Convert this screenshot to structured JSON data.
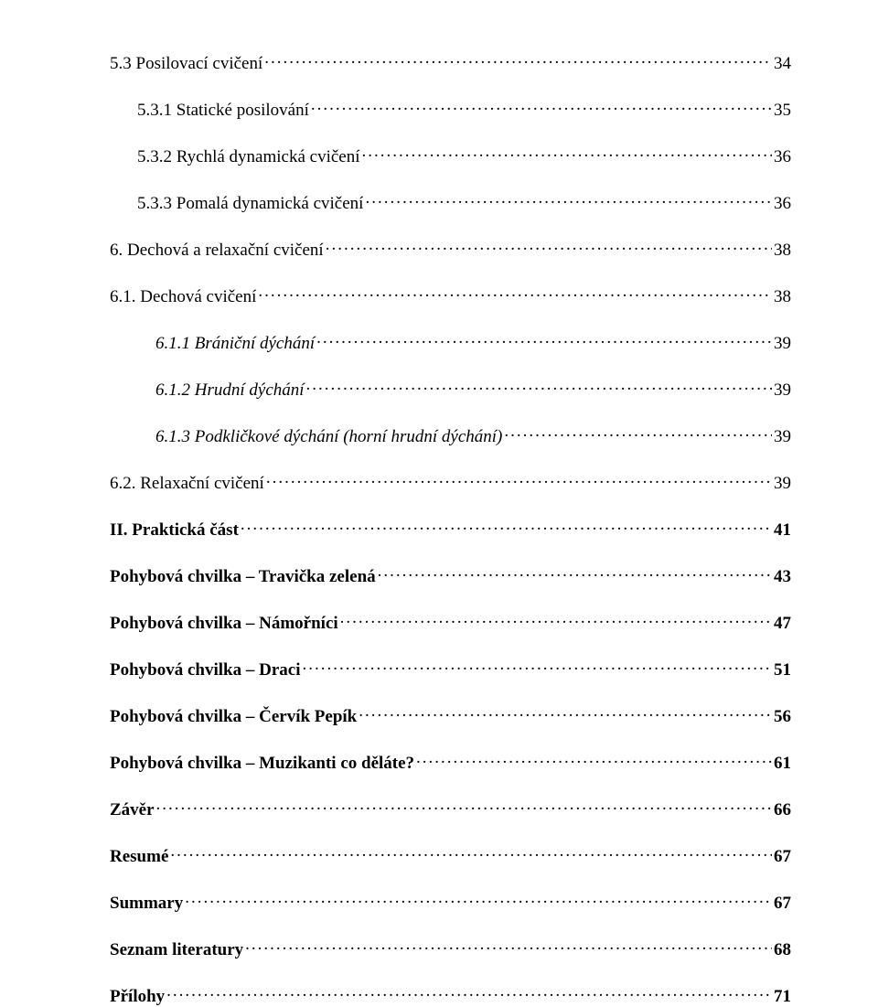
{
  "toc": [
    {
      "level": 1,
      "style": "plain",
      "label": "5.3 Posilovací cvičení",
      "page": "34"
    },
    {
      "level": 2,
      "style": "plain",
      "label": "5.3.1 Statické posilování",
      "page": "35"
    },
    {
      "level": 2,
      "style": "plain",
      "label": "5.3.2 Rychlá dynamická cvičení",
      "page": "36"
    },
    {
      "level": 2,
      "style": "plain",
      "label": "5.3.3 Pomalá dynamická cvičení",
      "page": "36"
    },
    {
      "level": 1,
      "style": "plain",
      "label": "6. Dechová a relaxační cvičení",
      "page": "38"
    },
    {
      "level": 1,
      "style": "plain",
      "label": "6.1. Dechová cvičení",
      "page": "38"
    },
    {
      "level": 3,
      "style": "italic",
      "label": "6.1.1 Brániční dýchání",
      "page": "39"
    },
    {
      "level": 3,
      "style": "italic",
      "label": "6.1.2 Hrudní dýchání",
      "page": "39"
    },
    {
      "level": 3,
      "style": "italic",
      "label": "6.1.3 Podkličkové dýchání (horní hrudní dýchání)",
      "page": "39"
    },
    {
      "level": 1,
      "style": "plain",
      "label": "6.2. Relaxační cvičení",
      "page": "39"
    },
    {
      "level": 1,
      "style": "bold",
      "label": "II. Praktická část",
      "page": "41"
    },
    {
      "level": 1,
      "style": "bold",
      "label": "Pohybová chvilka – Travička zelená",
      "page": "43"
    },
    {
      "level": 1,
      "style": "bold",
      "label": "Pohybová chvilka – Námořníci",
      "page": "47"
    },
    {
      "level": 1,
      "style": "bold",
      "label": " Pohybová chvilka – Draci",
      "page": "51"
    },
    {
      "level": 1,
      "style": "bold",
      "label": " Pohybová chvilka – Červík Pepík",
      "page": "56"
    },
    {
      "level": 1,
      "style": "bold",
      "label": " Pohybová chvilka – Muzikanti co děláte?",
      "page": "61"
    },
    {
      "level": 1,
      "style": "bold",
      "label": "Závěr",
      "page": "66"
    },
    {
      "level": 1,
      "style": "bold",
      "label": "Resumé",
      "page": "67"
    },
    {
      "level": 1,
      "style": "bold",
      "label": " Summary",
      "page": "67"
    },
    {
      "level": 1,
      "style": "bold",
      "label": "Seznam literatury",
      "page": "68"
    },
    {
      "level": 1,
      "style": "bold",
      "label": "Přílohy",
      "page": "71"
    }
  ]
}
